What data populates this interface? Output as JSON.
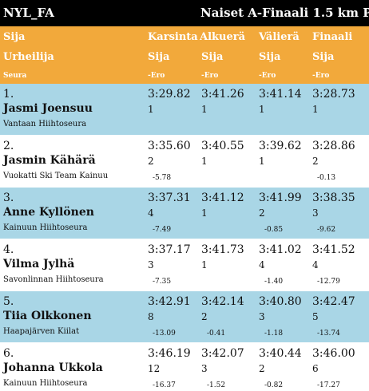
{
  "title": {
    "left": "NYL_FA",
    "right": "Naiset A-Finaali 1.5 km P"
  },
  "header": {
    "col1_top": "Sija",
    "col1_mid": "Urheilija",
    "col1_bottom": "Seura",
    "rounds": [
      "Karsinta",
      "Alkuerä",
      "Välierä",
      "Finaali"
    ],
    "pos_label": "Sija",
    "diff_label": "-Ero"
  },
  "rows": [
    {
      "rank": "1.",
      "name": "Jasmi Joensuu",
      "club": "Vantaan Hiihtoseura",
      "times": [
        "3:29.82",
        "3:41.26",
        "3:41.14",
        "3:28.73"
      ],
      "positions": [
        "1",
        "1",
        "1",
        "1"
      ],
      "diffs": [
        "",
        "",
        "",
        ""
      ]
    },
    {
      "rank": "2.",
      "name": "Jasmin Kähärä",
      "club": "Vuokatti Ski Team Kainuu",
      "times": [
        "3:35.60",
        "3:40.55",
        "3:39.62",
        "3:28.86"
      ],
      "positions": [
        "2",
        "1",
        "1",
        "2"
      ],
      "diffs": [
        "-5.78",
        "",
        "",
        "-0.13"
      ]
    },
    {
      "rank": "3.",
      "name": "Anne Kyllönen",
      "club": "Kainuun Hiihtoseura",
      "times": [
        "3:37.31",
        "3:41.12",
        "3:41.99",
        "3:38.35"
      ],
      "positions": [
        "4",
        "1",
        "2",
        "3"
      ],
      "diffs": [
        "-7.49",
        "",
        "-0.85",
        "-9.62"
      ]
    },
    {
      "rank": "4.",
      "name": "Vilma Jylhä",
      "club": "Savonlinnan Hiihtoseura",
      "times": [
        "3:37.17",
        "3:41.73",
        "3:41.02",
        "3:41.52"
      ],
      "positions": [
        "3",
        "1",
        "4",
        "4"
      ],
      "diffs": [
        "-7.35",
        "",
        "-1.40",
        "-12.79"
      ]
    },
    {
      "rank": "5.",
      "name": "Tiia Olkkonen",
      "club": "Haapajärven Kiilat",
      "times": [
        "3:42.91",
        "3:42.14",
        "3:40.80",
        "3:42.47"
      ],
      "positions": [
        "8",
        "2",
        "3",
        "5"
      ],
      "diffs": [
        "-13.09",
        "-0.41",
        "-1.18",
        "-13.74"
      ]
    },
    {
      "rank": "6.",
      "name": "Johanna Ukkola",
      "club": "Kainuun Hiihtoseura",
      "times": [
        "3:46.19",
        "3:42.07",
        "3:40.44",
        "3:46.00"
      ],
      "positions": [
        "12",
        "3",
        "2",
        "6"
      ],
      "diffs": [
        "-16.37",
        "-1.52",
        "-0.82",
        "-17.27"
      ]
    }
  ],
  "colors": {
    "header": "#f2a93b",
    "row_alt": "#a9d6e6",
    "title_bar": "#000000"
  }
}
